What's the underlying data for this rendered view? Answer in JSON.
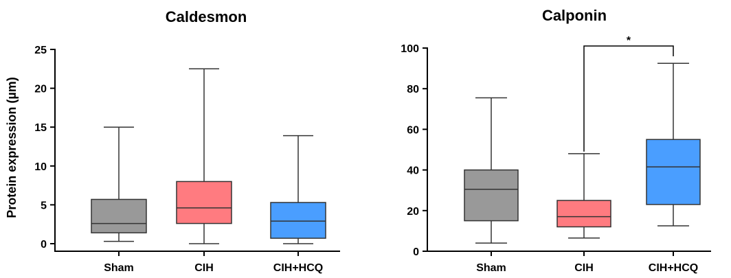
{
  "ylabel": "Protein expression (µm)",
  "chart_data": [
    {
      "type": "box",
      "title": "Caldesmon",
      "categories": [
        "Sham",
        "CIH",
        "CIH+HCQ"
      ],
      "colors": [
        "#999999",
        "#ff7b80",
        "#4a9eff"
      ],
      "ylim": [
        0,
        25
      ],
      "yticks": [
        0,
        5,
        10,
        15,
        20,
        25
      ],
      "ytick_labels": [
        "0",
        "5",
        "10",
        "15",
        "20",
        "25"
      ],
      "ylabel": "Protein expression (µm)",
      "boxes": [
        {
          "min": 0.3,
          "q1": 1.4,
          "median": 2.6,
          "q3": 5.7,
          "max": 15.0
        },
        {
          "min": 0.0,
          "q1": 2.6,
          "median": 4.6,
          "q3": 8.0,
          "max": 22.5
        },
        {
          "min": 0.0,
          "q1": 0.7,
          "median": 2.9,
          "q3": 5.3,
          "max": 13.9
        }
      ],
      "significance": []
    },
    {
      "type": "box",
      "title": "Calponin",
      "categories": [
        "Sham",
        "CIH",
        "CIH+HCQ"
      ],
      "colors": [
        "#999999",
        "#ff7b80",
        "#4a9eff"
      ],
      "ylim": [
        0,
        100
      ],
      "yticks": [
        0,
        20,
        40,
        60,
        80,
        100
      ],
      "ytick_labels": [
        "0",
        "20",
        "40",
        "60",
        "80",
        "100"
      ],
      "ylabel": "",
      "boxes": [
        {
          "min": 4,
          "q1": 15,
          "median": 30.5,
          "q3": 40,
          "max": 75.5
        },
        {
          "min": 6.5,
          "q1": 12,
          "median": 17,
          "q3": 25,
          "max": 48
        },
        {
          "min": 12.5,
          "q1": 23,
          "median": 41.5,
          "q3": 55,
          "max": 92.5
        }
      ],
      "significance": [
        {
          "from": "CIH",
          "to": "CIH+HCQ",
          "label": "*"
        }
      ]
    }
  ]
}
